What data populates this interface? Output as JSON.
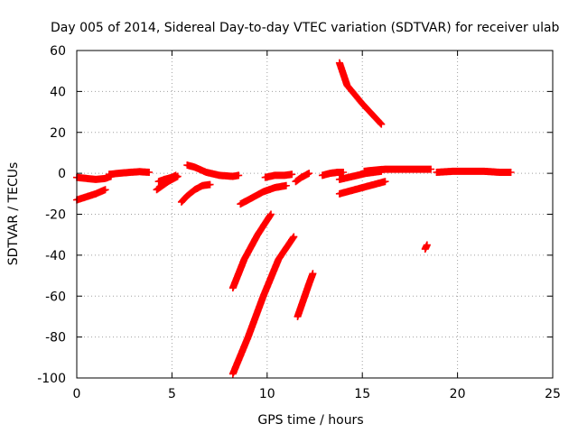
{
  "chart_data": {
    "type": "scatter",
    "title": "Day 005 of 2014, Sidereal Day-to-day VTEC variation (SDTVAR) for receiver ulab",
    "xlabel": "GPS time / hours",
    "ylabel": "SDTVAR / TECUs",
    "xlim": [
      0,
      25
    ],
    "ylim": [
      -100,
      60
    ],
    "xticks": [
      0,
      5,
      10,
      15,
      20,
      25
    ],
    "yticks": [
      -100,
      -80,
      -60,
      -40,
      -20,
      0,
      20,
      40,
      60
    ],
    "grid": true,
    "marker": "plus",
    "color": "#ff0000",
    "tracks": [
      {
        "x": [
          0.0,
          0.5,
          1.0,
          1.5,
          1.8
        ],
        "y": [
          -2.0,
          -2.5,
          -3.0,
          -2.5,
          -1.5
        ]
      },
      {
        "x": [
          1.7,
          2.2,
          2.8,
          3.3,
          3.8
        ],
        "y": [
          -0.5,
          0.0,
          0.5,
          0.8,
          0.5
        ]
      },
      {
        "x": [
          0.0,
          0.5,
          1.0,
          1.5
        ],
        "y": [
          -13.0,
          -11.5,
          -10.0,
          -8.0
        ]
      },
      {
        "x": [
          4.3,
          4.6,
          5.0,
          5.2
        ],
        "y": [
          -4.0,
          -3.0,
          -2.0,
          -1.0
        ]
      },
      {
        "x": [
          4.2,
          4.5,
          4.8,
          5.1,
          5.3
        ],
        "y": [
          -8.0,
          -6.0,
          -4.0,
          -2.5,
          -1.5
        ]
      },
      {
        "x": [
          5.5,
          5.8,
          6.2,
          6.6,
          7.0
        ],
        "y": [
          -14.0,
          -11.0,
          -8.0,
          -6.0,
          -5.5
        ]
      },
      {
        "x": [
          5.8,
          6.2,
          6.8,
          7.5,
          8.2,
          8.5
        ],
        "y": [
          4.0,
          3.0,
          0.5,
          -1.0,
          -1.5,
          -1.0
        ]
      },
      {
        "x": [
          8.6,
          9.2,
          9.8,
          10.4,
          11.0
        ],
        "y": [
          -15.0,
          -12.0,
          -9.0,
          -7.0,
          -6.0
        ]
      },
      {
        "x": [
          8.2,
          8.8,
          9.5,
          10.2
        ],
        "y": [
          -56.0,
          -42.0,
          -30.0,
          -20.0
        ]
      },
      {
        "x": [
          8.2,
          9.0,
          9.8,
          10.6,
          11.4
        ],
        "y": [
          -98.0,
          -80.0,
          -60.0,
          -42.0,
          -31.0
        ]
      },
      {
        "x": [
          11.6,
          11.9,
          12.2,
          12.4
        ],
        "y": [
          -70.0,
          -62.0,
          -54.0,
          -49.0
        ]
      },
      {
        "x": [
          9.9,
          10.4,
          10.9,
          11.3
        ],
        "y": [
          -2.0,
          -1.0,
          -1.0,
          -0.5
        ]
      },
      {
        "x": [
          11.5,
          11.8,
          12.2
        ],
        "y": [
          -4.0,
          -2.0,
          0.0
        ]
      },
      {
        "x": [
          12.9,
          13.3,
          13.7,
          14.0
        ],
        "y": [
          -1.0,
          0.0,
          0.5,
          0.5
        ]
      },
      {
        "x": [
          13.8,
          14.2,
          15.0,
          16.0
        ],
        "y": [
          54.0,
          43.0,
          34.0,
          24.0
        ]
      },
      {
        "x": [
          13.8,
          14.5,
          15.2,
          16.0
        ],
        "y": [
          -3.0,
          -1.5,
          0.0,
          1.0
        ]
      },
      {
        "x": [
          13.8,
          14.6,
          15.4,
          16.2
        ],
        "y": [
          -10.0,
          -8.0,
          -6.0,
          -4.0
        ]
      },
      {
        "x": [
          15.1,
          15.6,
          16.2,
          17.0,
          17.8,
          18.6
        ],
        "y": [
          1.0,
          1.5,
          2.0,
          2.0,
          2.0,
          2.0
        ]
      },
      {
        "x": [
          18.9,
          19.8,
          20.6,
          21.4,
          22.2,
          22.8
        ],
        "y": [
          0.5,
          1.0,
          1.0,
          1.0,
          0.5,
          0.5
        ]
      },
      {
        "x": [
          18.3,
          18.4
        ],
        "y": [
          -37.0,
          -35.0
        ]
      }
    ]
  }
}
